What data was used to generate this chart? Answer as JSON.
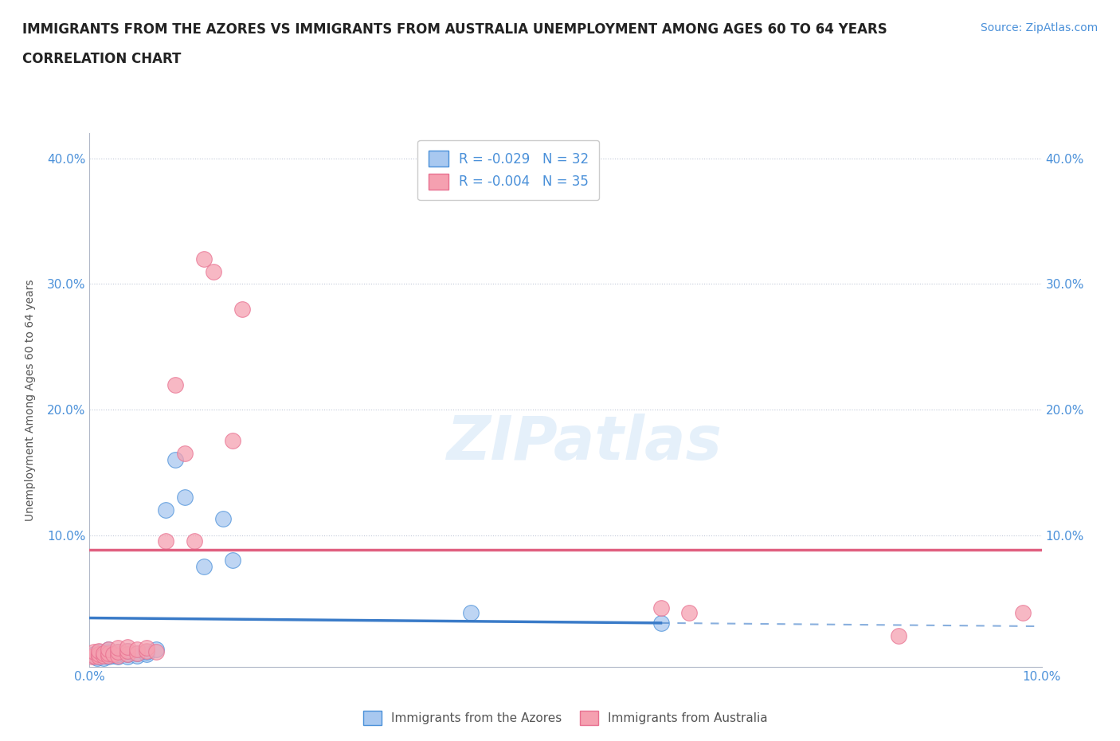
{
  "title_line1": "IMMIGRANTS FROM THE AZORES VS IMMIGRANTS FROM AUSTRALIA UNEMPLOYMENT AMONG AGES 60 TO 64 YEARS",
  "title_line2": "CORRELATION CHART",
  "source_text": "Source: ZipAtlas.com",
  "watermark": "ZIPatlas",
  "ylabel": "Unemployment Among Ages 60 to 64 years",
  "xlim": [
    0.0,
    0.1
  ],
  "ylim": [
    -0.005,
    0.42
  ],
  "xticks": [
    0.0,
    0.01,
    0.02,
    0.03,
    0.04,
    0.05,
    0.06,
    0.07,
    0.08,
    0.09,
    0.1
  ],
  "yticks": [
    0.0,
    0.1,
    0.2,
    0.3,
    0.4
  ],
  "ytick_labels": [
    "",
    "10.0%",
    "20.0%",
    "30.0%",
    "40.0%"
  ],
  "xtick_labels": [
    "0.0%",
    "",
    "",
    "",
    "",
    "",
    "",
    "",
    "",
    "",
    "10.0%"
  ],
  "azores_color": "#a8c8f0",
  "australia_color": "#f5a0b0",
  "azores_edge_color": "#4a90d9",
  "australia_edge_color": "#e87090",
  "azores_line_color": "#3a7bc8",
  "australia_line_color": "#e06080",
  "legend_azores_label": "R = -0.029   N = 32",
  "legend_australia_label": "R = -0.004   N = 35",
  "azores_line_y_start": 0.034,
  "azores_line_y_end": 0.03,
  "azores_line_x_start": 0.0,
  "azores_line_x_end": 0.06,
  "azores_line_x_dash_end": 0.1,
  "australia_line_y": 0.088,
  "australia_line_x_start": 0.0,
  "australia_line_x_end": 0.1,
  "azores_x": [
    0.0005,
    0.0005,
    0.0008,
    0.001,
    0.001,
    0.001,
    0.0015,
    0.0015,
    0.002,
    0.002,
    0.002,
    0.002,
    0.0025,
    0.003,
    0.003,
    0.003,
    0.004,
    0.004,
    0.004,
    0.005,
    0.005,
    0.006,
    0.006,
    0.007,
    0.008,
    0.009,
    0.01,
    0.012,
    0.014,
    0.015,
    0.04,
    0.06
  ],
  "azores_y": [
    0.003,
    0.005,
    0.002,
    0.003,
    0.005,
    0.007,
    0.002,
    0.004,
    0.003,
    0.005,
    0.007,
    0.009,
    0.004,
    0.003,
    0.005,
    0.007,
    0.003,
    0.005,
    0.008,
    0.004,
    0.006,
    0.005,
    0.007,
    0.009,
    0.12,
    0.16,
    0.13,
    0.075,
    0.113,
    0.08,
    0.038,
    0.03
  ],
  "australia_x": [
    0.0003,
    0.0005,
    0.0005,
    0.001,
    0.001,
    0.001,
    0.0015,
    0.0015,
    0.002,
    0.002,
    0.002,
    0.0025,
    0.003,
    0.003,
    0.003,
    0.004,
    0.004,
    0.004,
    0.005,
    0.005,
    0.006,
    0.006,
    0.007,
    0.008,
    0.009,
    0.01,
    0.011,
    0.012,
    0.013,
    0.015,
    0.016,
    0.06,
    0.063,
    0.085,
    0.098
  ],
  "australia_y": [
    0.003,
    0.004,
    0.007,
    0.003,
    0.005,
    0.008,
    0.004,
    0.006,
    0.004,
    0.006,
    0.009,
    0.005,
    0.004,
    0.007,
    0.01,
    0.005,
    0.008,
    0.011,
    0.006,
    0.009,
    0.008,
    0.01,
    0.007,
    0.095,
    0.22,
    0.165,
    0.095,
    0.32,
    0.31,
    0.175,
    0.28,
    0.042,
    0.038,
    0.02,
    0.038
  ]
}
